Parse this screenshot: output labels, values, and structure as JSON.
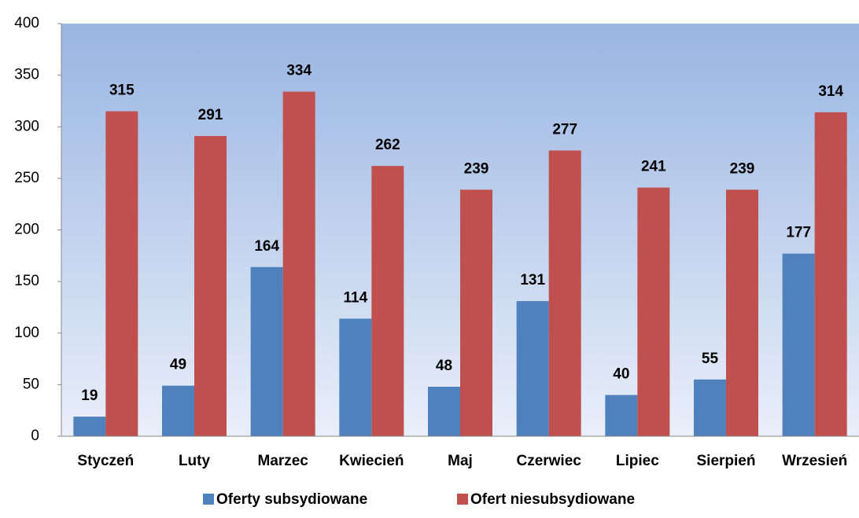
{
  "chart_data": {
    "type": "bar",
    "categories": [
      "Styczeń",
      "Luty",
      "Marzec",
      "Kwiecień",
      "Maj",
      "Czerwiec",
      "Lipiec",
      "Sierpień",
      "Wrzesień"
    ],
    "series": [
      {
        "name": "Oferty subsydiowane",
        "color": "#4f81bd",
        "values": [
          19,
          49,
          164,
          114,
          48,
          131,
          40,
          55,
          177
        ]
      },
      {
        "name": "Ofert niesubsydiowane",
        "color": "#c0504d",
        "values": [
          315,
          291,
          334,
          262,
          239,
          277,
          241,
          239,
          314
        ]
      }
    ],
    "ylim": [
      0,
      400
    ],
    "yticks": [
      0,
      50,
      100,
      150,
      200,
      250,
      300,
      350,
      400
    ],
    "legend": "bottom"
  }
}
